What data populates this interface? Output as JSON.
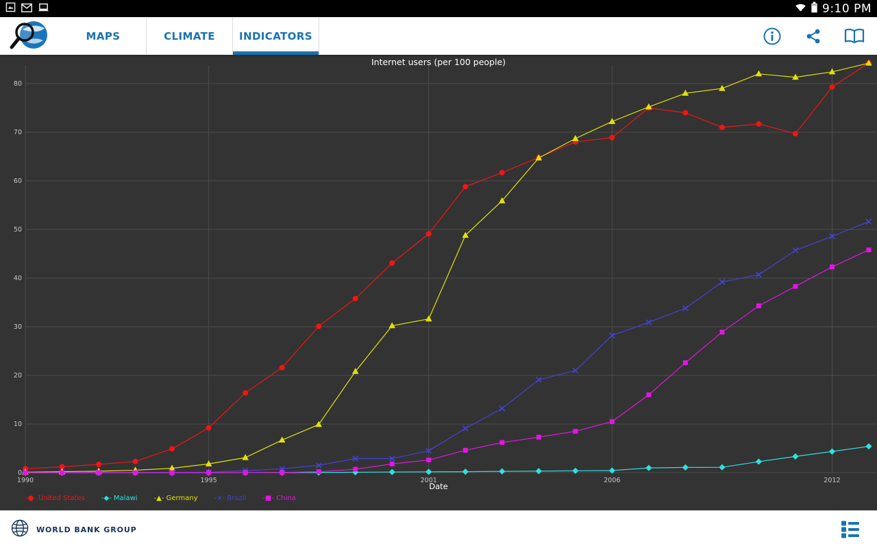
{
  "status_bar": {
    "time": "9:10 PM",
    "left_icons": [
      "screenshot-notification",
      "message-notification",
      "connected-device-notification"
    ],
    "right_icons": [
      "wifi",
      "battery"
    ]
  },
  "app_bar": {
    "tabs": [
      {
        "label": "MAPS",
        "active": false
      },
      {
        "label": "CLIMATE",
        "active": false
      },
      {
        "label": "INDICATORS",
        "active": true
      }
    ],
    "actions": [
      "info",
      "share",
      "read"
    ]
  },
  "chart_data": {
    "type": "line",
    "title": "Internet users (per 100 people)",
    "xlabel": "Date",
    "ylabel": "",
    "x_range": [
      1990,
      2013
    ],
    "ylim": [
      0,
      85
    ],
    "x_ticks": [
      1990,
      1995,
      2001,
      2006,
      2012
    ],
    "y_ticks": [
      0,
      10,
      20,
      30,
      40,
      50,
      60,
      70,
      80
    ],
    "grid": true,
    "legend_position": "bottom-left",
    "years": [
      1990,
      1991,
      1992,
      1993,
      1994,
      1995,
      1996,
      1997,
      1998,
      1999,
      2000,
      2001,
      2002,
      2003,
      2004,
      2005,
      2006,
      2007,
      2008,
      2009,
      2010,
      2011,
      2012,
      2013
    ],
    "series": [
      {
        "name": "United States",
        "color": "#f21515",
        "marker": "circle",
        "values": [
          0.8,
          1.2,
          1.7,
          2.3,
          4.9,
          9.2,
          16.4,
          21.6,
          30.1,
          35.8,
          43.1,
          49.1,
          58.8,
          61.7,
          64.8,
          68.0,
          68.9,
          75.0,
          74.0,
          71.0,
          71.7,
          69.7,
          79.3,
          84.2
        ]
      },
      {
        "name": "Malawi",
        "color": "#2fe0e0",
        "marker": "diamond",
        "values": [
          0,
          0,
          0,
          0,
          0,
          0,
          0.01,
          0.02,
          0.04,
          0.08,
          0.13,
          0.17,
          0.19,
          0.26,
          0.32,
          0.38,
          0.43,
          0.97,
          1.07,
          1.1,
          2.26,
          3.33,
          4.35,
          5.4
        ]
      },
      {
        "name": "Germany",
        "color": "#e2e20a",
        "marker": "triangle",
        "values": [
          0.1,
          0.2,
          0.3,
          0.5,
          0.9,
          1.8,
          3.1,
          6.7,
          9.9,
          20.8,
          30.2,
          31.6,
          48.8,
          55.9,
          64.7,
          68.7,
          72.2,
          75.2,
          78.0,
          79.0,
          82.0,
          81.3,
          82.4,
          84.2
        ]
      },
      {
        "name": "Brazil",
        "color": "#4343d8",
        "marker": "x",
        "values": [
          0,
          0,
          0,
          0,
          0.04,
          0.1,
          0.4,
          0.8,
          1.5,
          2.9,
          2.9,
          4.5,
          9.1,
          13.2,
          19.1,
          21.0,
          28.2,
          30.9,
          33.8,
          39.2,
          40.7,
          45.7,
          48.6,
          51.6
        ]
      },
      {
        "name": "China",
        "color": "#e316e3",
        "marker": "square",
        "values": [
          0,
          0,
          0,
          0,
          0,
          0,
          0.01,
          0.03,
          0.2,
          0.7,
          1.8,
          2.6,
          4.6,
          6.2,
          7.3,
          8.5,
          10.5,
          16.0,
          22.6,
          28.9,
          34.3,
          38.3,
          42.3,
          45.8
        ]
      }
    ]
  },
  "footer": {
    "brand": "WORLD BANK GROUP"
  },
  "colors": {
    "accent_blue": "#1873b0",
    "chart_bg": "#333333",
    "grid": "#4d4d4d",
    "tick_text": "#c8c8c8",
    "title_text": "#ffffff",
    "brand_navy": "#15345c"
  }
}
